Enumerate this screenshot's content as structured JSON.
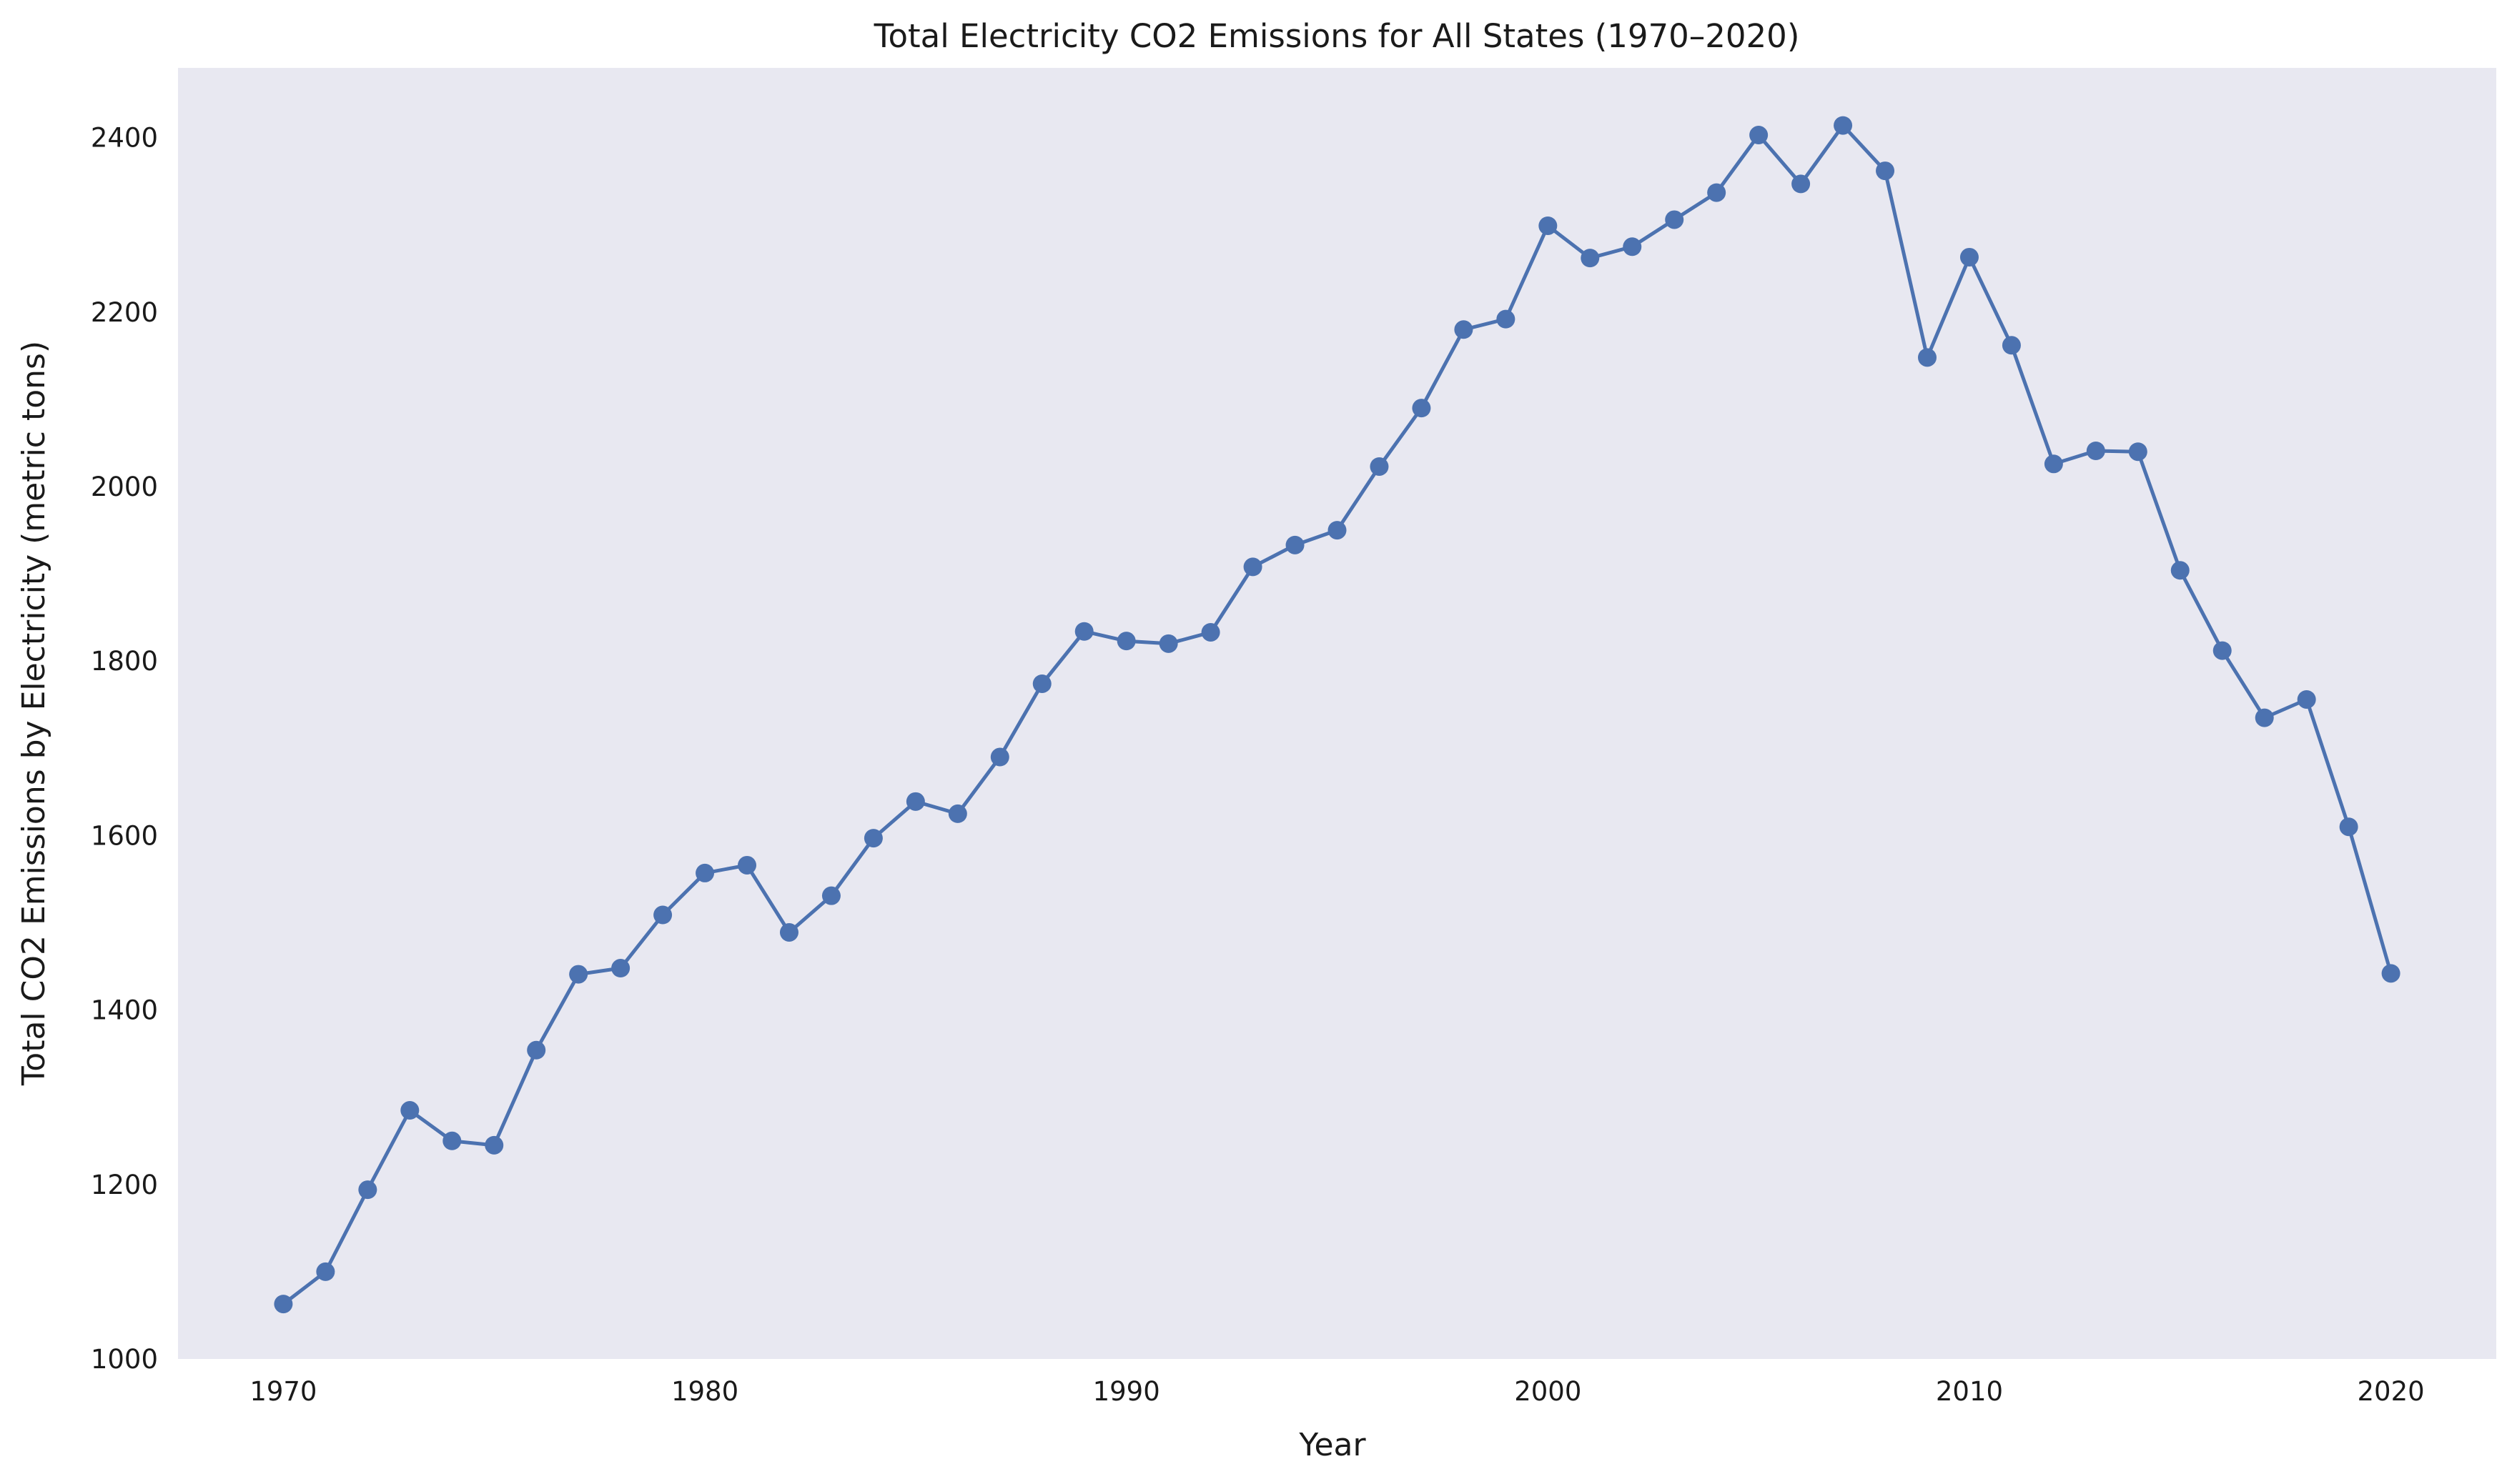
{
  "chart_data": {
    "type": "line",
    "title": "Total Electricity CO2 Emissions for All States (1970–2020)",
    "xlabel": "Year",
    "ylabel": "Total CO2 Emissions by Electricity (metric tons)",
    "xlim": [
      1967.5,
      2022.5
    ],
    "ylim": [
      1000,
      2480
    ],
    "xticks": [
      1970,
      1980,
      1990,
      2000,
      2010,
      2020
    ],
    "yticks": [
      1000,
      1200,
      1400,
      1600,
      1800,
      2000,
      2200,
      2400
    ],
    "grid": false,
    "legend": "none",
    "colors": {
      "plot_background": "#e8e8f1",
      "line": "#4c72b0",
      "text": "#1a1a1a"
    },
    "x": [
      1970,
      1971,
      1972,
      1973,
      1974,
      1975,
      1976,
      1977,
      1978,
      1979,
      1980,
      1981,
      1982,
      1983,
      1984,
      1985,
      1986,
      1987,
      1988,
      1989,
      1990,
      1991,
      1992,
      1993,
      1994,
      1995,
      1996,
      1997,
      1998,
      1999,
      2000,
      2001,
      2002,
      2003,
      2004,
      2005,
      2006,
      2007,
      2008,
      2009,
      2010,
      2011,
      2012,
      2013,
      2014,
      2015,
      2016,
      2017,
      2018,
      2019,
      2020
    ],
    "series": [
      {
        "values": [
          1063,
          1100,
          1194,
          1285,
          1250,
          1245,
          1354,
          1441,
          1448,
          1509,
          1557,
          1566,
          1489,
          1531,
          1597,
          1639,
          1625,
          1690,
          1774,
          1834,
          1823,
          1820,
          1833,
          1908,
          1933,
          1950,
          2023,
          2090,
          2180,
          2192,
          2299,
          2262,
          2275,
          2306,
          2337,
          2403,
          2347,
          2414,
          2362,
          2148,
          2263,
          2162,
          2026,
          2041,
          2040,
          1904,
          1812,
          1735,
          1756,
          1610,
          1442
        ]
      }
    ]
  }
}
